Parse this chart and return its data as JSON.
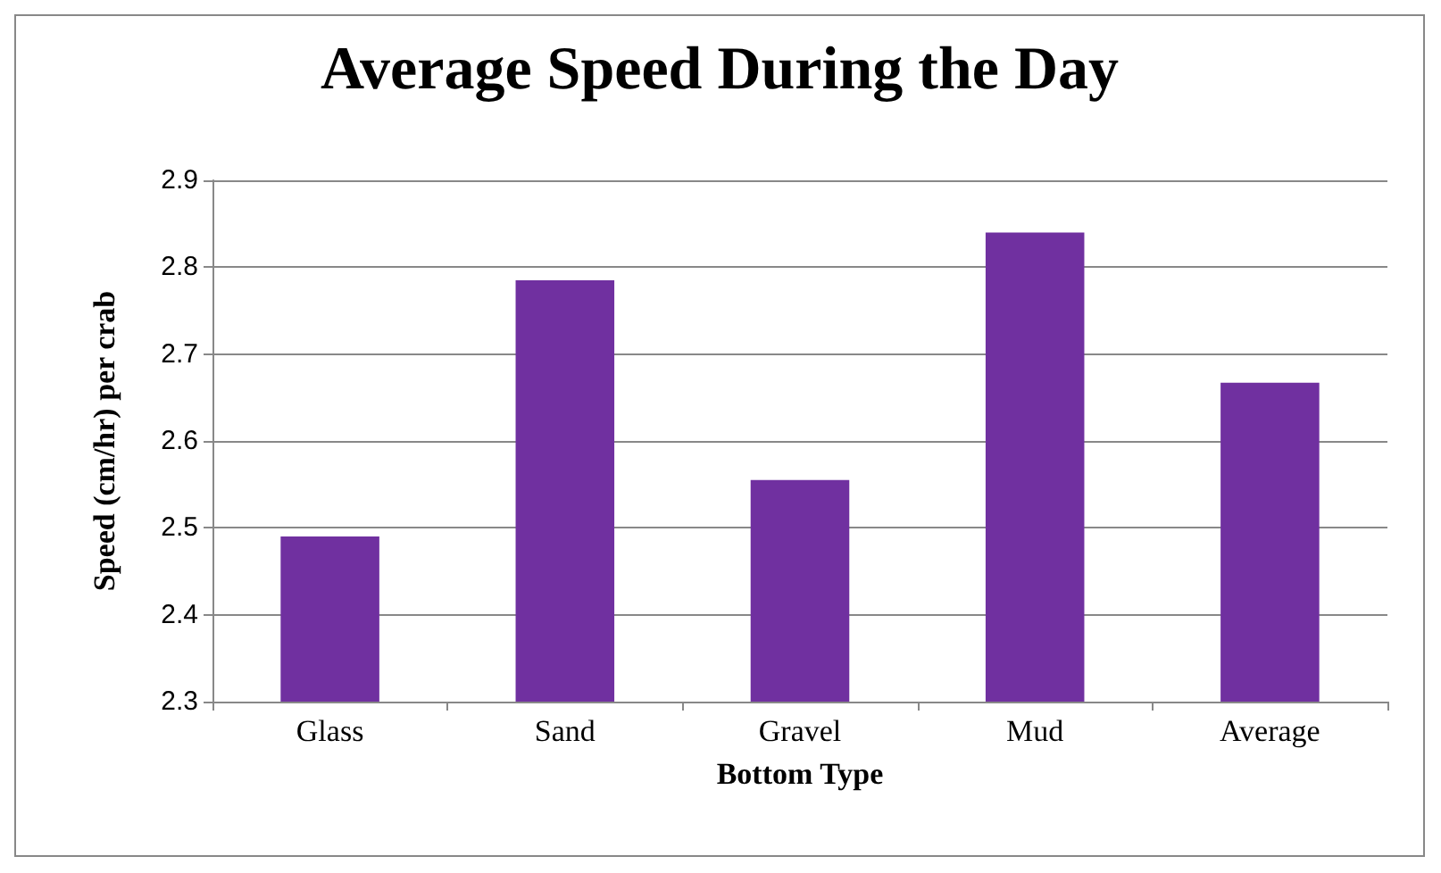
{
  "chart_data": {
    "type": "bar",
    "title": "Average Speed During the Day",
    "xlabel": "Bottom Type",
    "ylabel": "Speed (cm/hr) per crab",
    "categories": [
      "Glass",
      "Sand",
      "Gravel",
      "Mud",
      "Average"
    ],
    "values": [
      2.49,
      2.785,
      2.555,
      2.84,
      2.667
    ],
    "color": "#7030a0",
    "ylim": [
      2.3,
      2.9
    ],
    "yticks": [
      2.3,
      2.4,
      2.5,
      2.6,
      2.7,
      2.8,
      2.9
    ],
    "grid": "y"
  }
}
